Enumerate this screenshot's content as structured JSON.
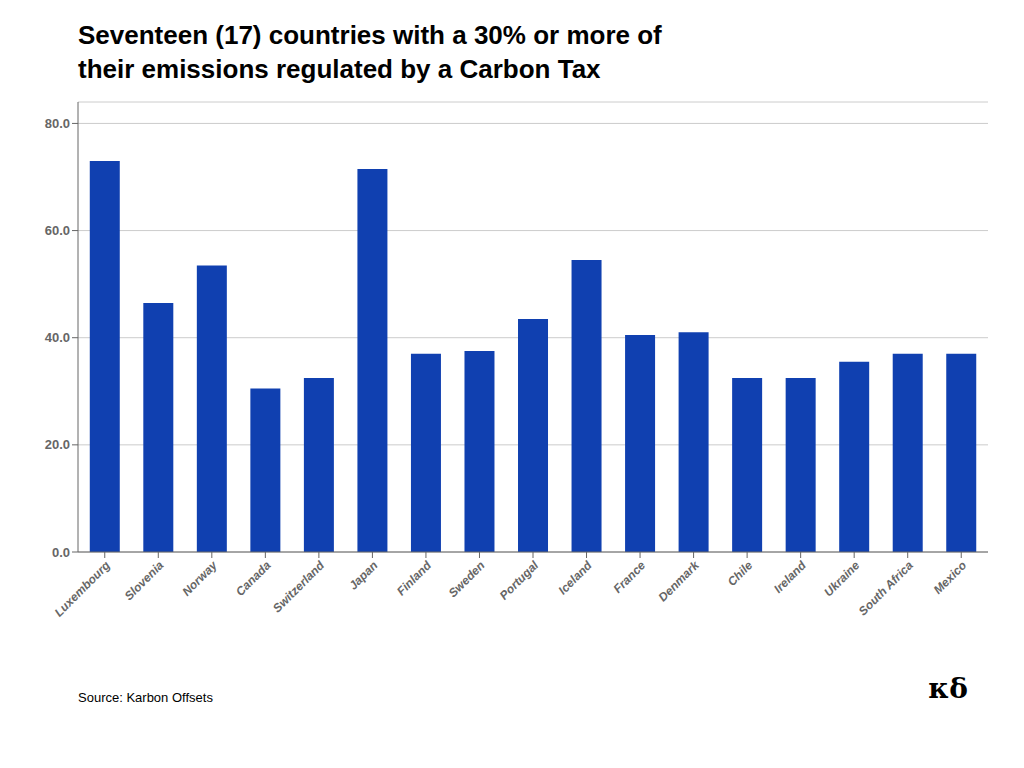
{
  "chart_data": {
    "type": "bar",
    "title": "Seventeen (17) countries with a 30% or more of\ntheir emissions regulated by a Carbon Tax",
    "categories": [
      "Luxembourg",
      "Slovenia",
      "Norway",
      "Canada",
      "Switzerland",
      "Japan",
      "Finland",
      "Sweden",
      "Portugal",
      "Iceland",
      "France",
      "Denmark",
      "Chile",
      "Ireland",
      "Ukraine",
      "South Africa",
      "Mexico"
    ],
    "values": [
      73.0,
      46.5,
      53.5,
      30.5,
      32.5,
      71.5,
      37.0,
      37.5,
      43.5,
      54.5,
      40.5,
      41.0,
      32.5,
      32.5,
      35.5,
      37.0,
      37.0
    ],
    "color": "#1040b0",
    "ylim": [
      0,
      84
    ],
    "yticks": [
      {
        "value": 0,
        "label": "0.0"
      },
      {
        "value": 20,
        "label": "20.0"
      },
      {
        "value": 40,
        "label": "40.0"
      },
      {
        "value": 60,
        "label": "60.0"
      },
      {
        "value": 80,
        "label": "80.0"
      }
    ],
    "grid": true,
    "annotations": [
      "Source: Karbon Offsets",
      "κδ"
    ]
  }
}
